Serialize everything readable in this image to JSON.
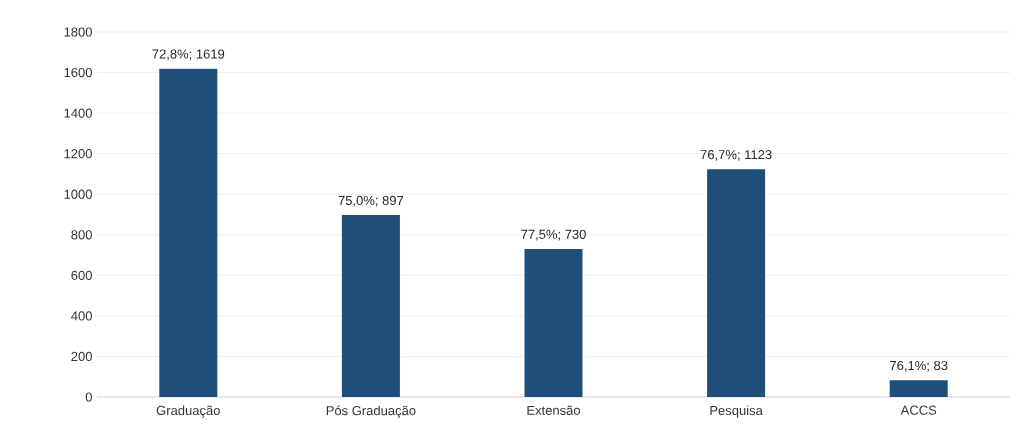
{
  "chart_data": {
    "type": "bar",
    "categories": [
      "Graduação",
      "Pós Graduação",
      "Extensão",
      "Pesquisa",
      "ACCS"
    ],
    "values": [
      1619,
      897,
      730,
      1123,
      83
    ],
    "value_labels": [
      "72,8%; 1619",
      "75,0%; 897",
      "77,5%; 730",
      "76,7%; 1123",
      "76,1%; 83"
    ],
    "color": "#1f4e79",
    "ylim": [
      0,
      1800
    ],
    "yticks": [
      0,
      200,
      400,
      600,
      800,
      1000,
      1200,
      1400,
      1600,
      1800
    ],
    "grid": "y"
  }
}
